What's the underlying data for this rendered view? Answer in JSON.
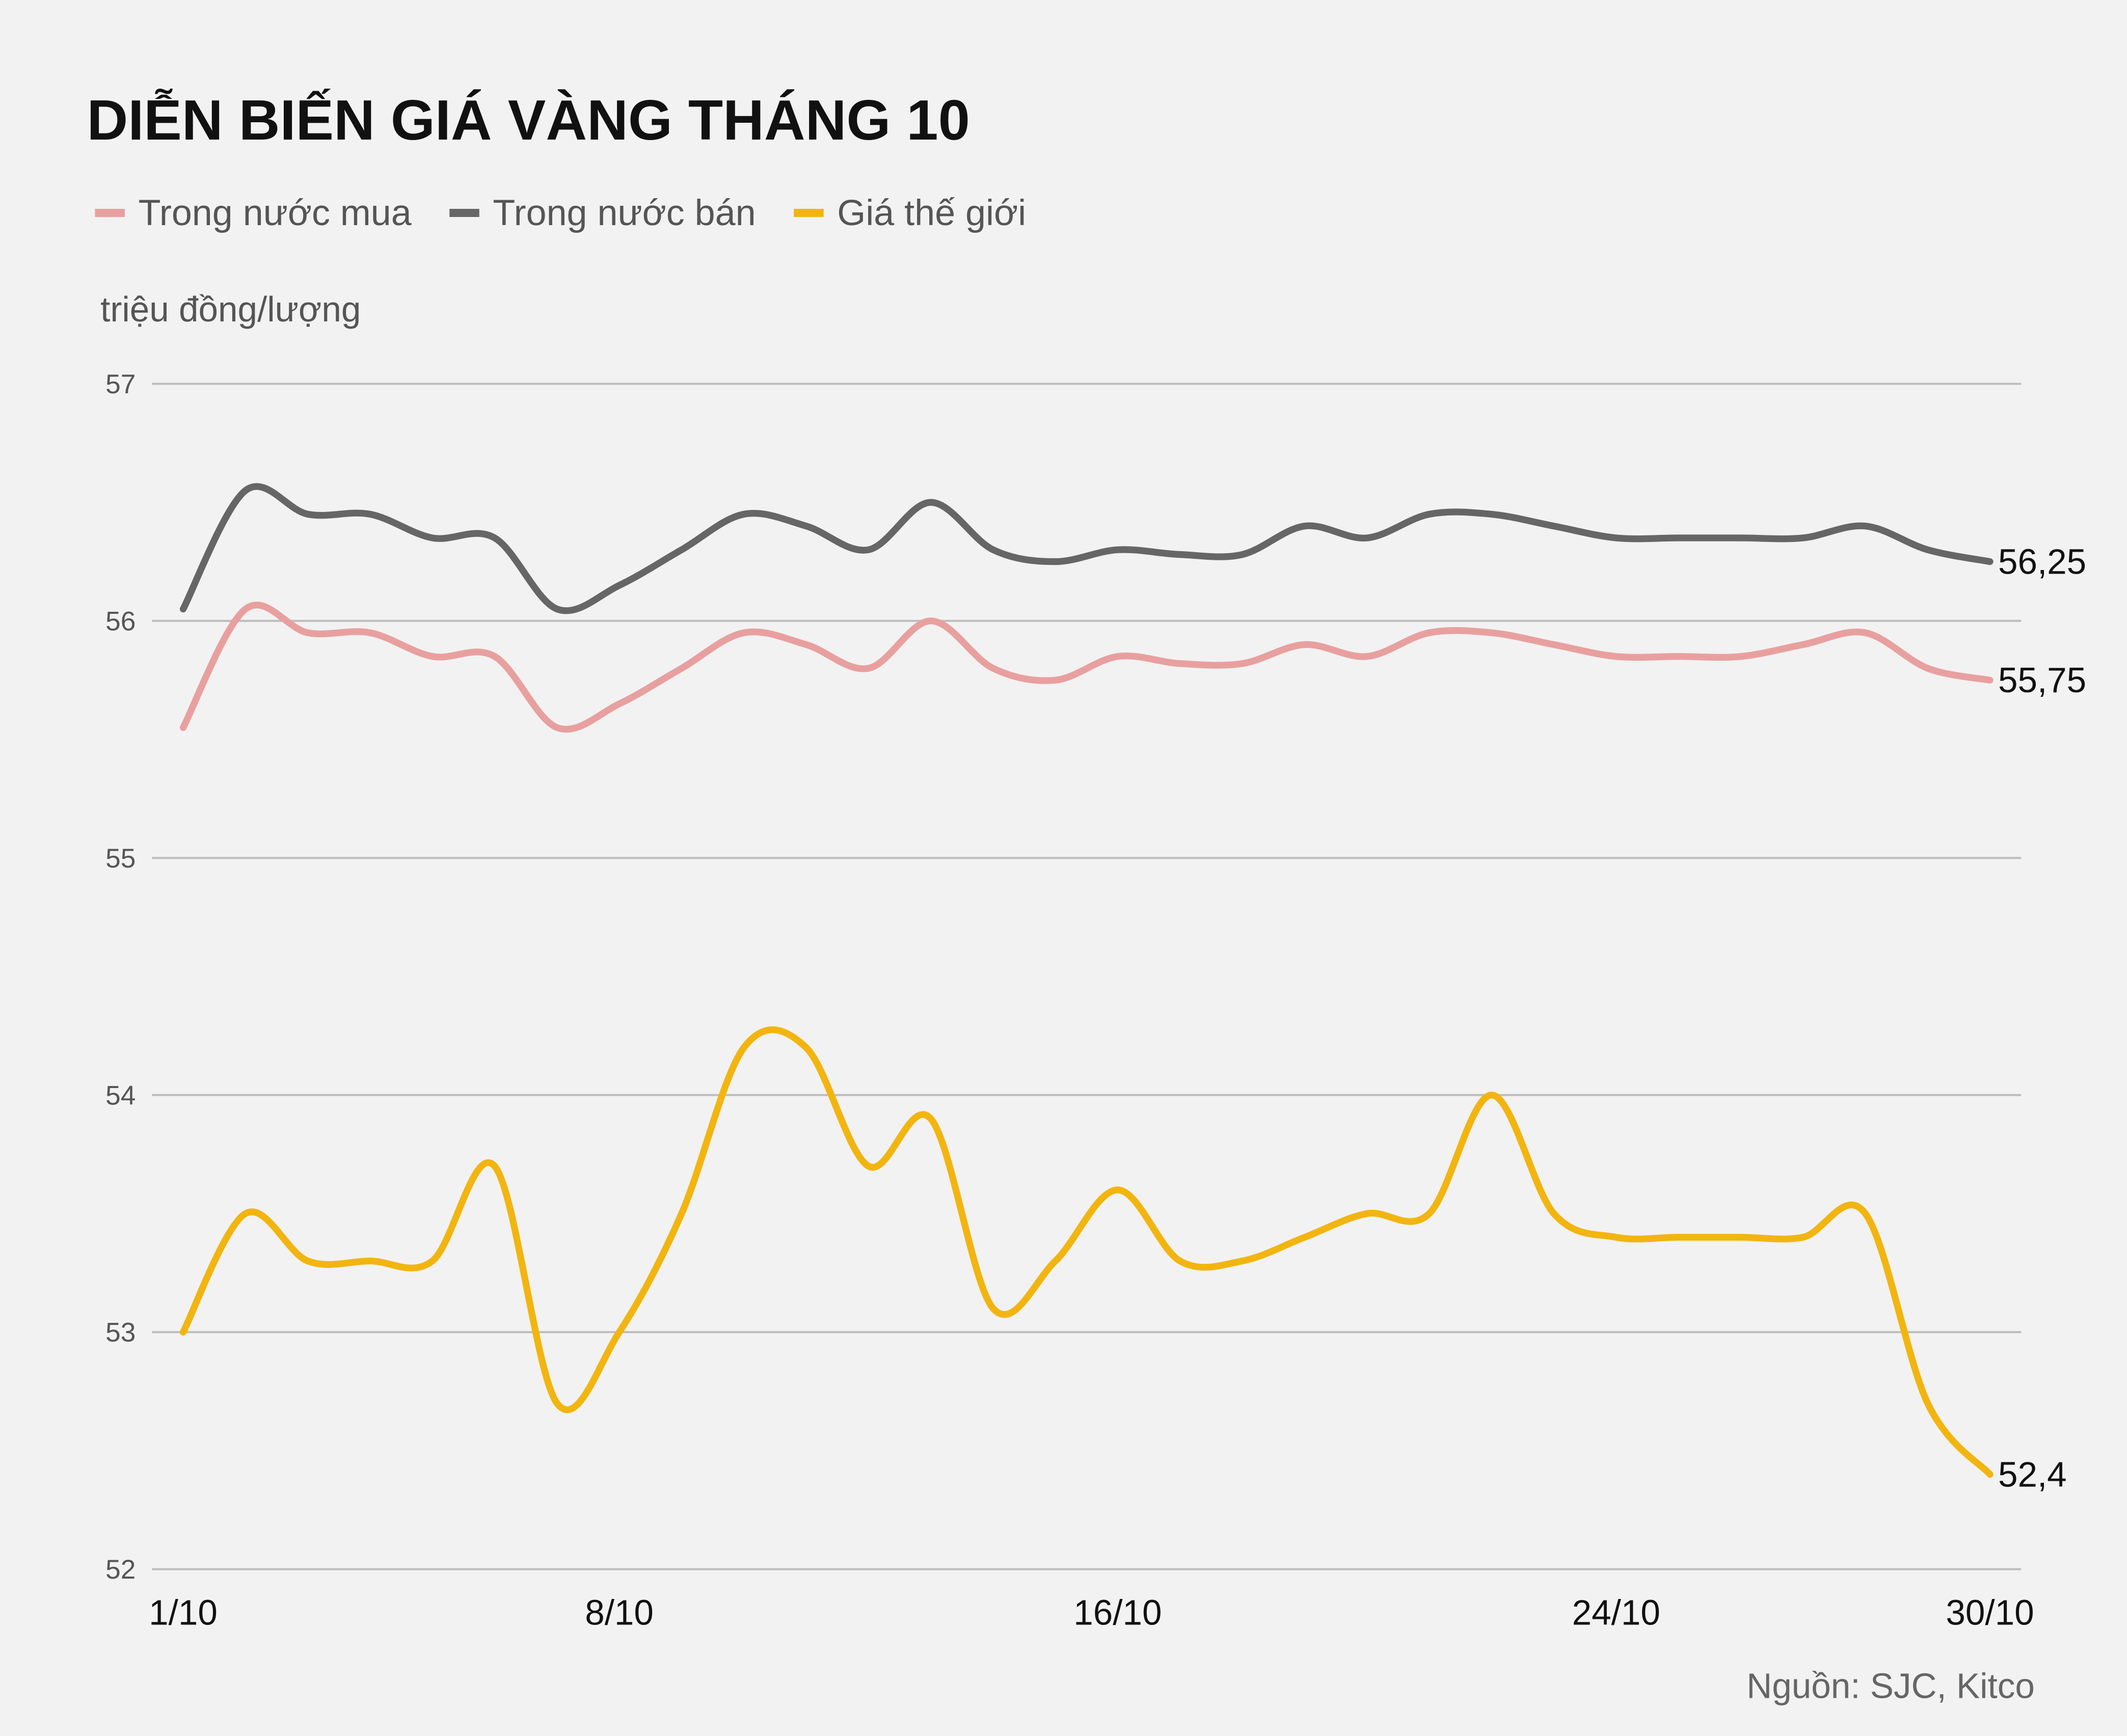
{
  "chart_data": {
    "type": "line",
    "title": "DIỄN BIẾN GIÁ VÀNG THÁNG 10",
    "y_label": "triệu đồng/lượng",
    "source": "Nguồn: SJC, Kitco",
    "categories": [
      "1/10",
      null,
      null,
      null,
      null,
      null,
      null,
      "8/10",
      null,
      null,
      null,
      null,
      null,
      null,
      null,
      "16/10",
      null,
      null,
      null,
      null,
      null,
      null,
      null,
      "24/10",
      null,
      null,
      null,
      null,
      null,
      "30/10"
    ],
    "ylim": [
      52,
      57
    ],
    "yticks": [
      52,
      53,
      54,
      55,
      56,
      57
    ],
    "grid": true,
    "series": [
      {
        "name": "Trong nước mua",
        "color": "#e8a09f",
        "values": [
          55.55,
          56.05,
          55.95,
          55.95,
          55.85,
          55.85,
          55.55,
          55.65,
          55.8,
          55.95,
          55.9,
          55.8,
          56.0,
          55.8,
          55.75,
          55.85,
          55.82,
          55.82,
          55.9,
          55.85,
          55.95,
          55.95,
          55.9,
          55.85,
          55.85,
          55.85,
          55.9,
          55.95,
          55.8,
          55.75
        ],
        "value_labels": [
          null,
          null,
          null,
          null,
          null,
          null,
          null,
          null,
          null,
          null,
          null,
          null,
          null,
          null,
          null,
          null,
          null,
          null,
          null,
          null,
          null,
          null,
          null,
          null,
          null,
          null,
          null,
          null,
          null,
          "55,75"
        ]
      },
      {
        "name": "Trong nước bán",
        "color": "#666666",
        "values": [
          56.05,
          56.55,
          56.45,
          56.45,
          56.35,
          56.35,
          56.05,
          56.15,
          56.3,
          56.45,
          56.4,
          56.3,
          56.5,
          56.3,
          56.25,
          56.3,
          56.28,
          56.28,
          56.4,
          56.35,
          56.45,
          56.45,
          56.4,
          56.35,
          56.35,
          56.35,
          56.35,
          56.4,
          56.3,
          56.25
        ],
        "value_labels": [
          null,
          null,
          null,
          null,
          null,
          null,
          null,
          null,
          null,
          null,
          null,
          null,
          null,
          null,
          null,
          null,
          null,
          null,
          null,
          null,
          null,
          null,
          null,
          null,
          null,
          null,
          null,
          null,
          null,
          "56,25"
        ]
      },
      {
        "name": "Giá thế giới",
        "color": "#f2b510",
        "values": [
          53.0,
          53.5,
          53.3,
          53.3,
          53.3,
          53.7,
          52.7,
          53.0,
          53.5,
          54.2,
          54.2,
          53.7,
          53.9,
          53.1,
          53.3,
          53.6,
          53.3,
          53.3,
          53.4,
          53.5,
          53.5,
          54.0,
          53.5,
          53.4,
          53.4,
          53.4,
          53.4,
          53.5,
          52.7,
          52.4
        ],
        "value_labels": [
          null,
          null,
          null,
          null,
          null,
          null,
          null,
          null,
          null,
          null,
          null,
          null,
          null,
          null,
          null,
          null,
          null,
          null,
          null,
          null,
          null,
          null,
          null,
          null,
          null,
          null,
          null,
          null,
          null,
          "52,4"
        ]
      }
    ]
  }
}
